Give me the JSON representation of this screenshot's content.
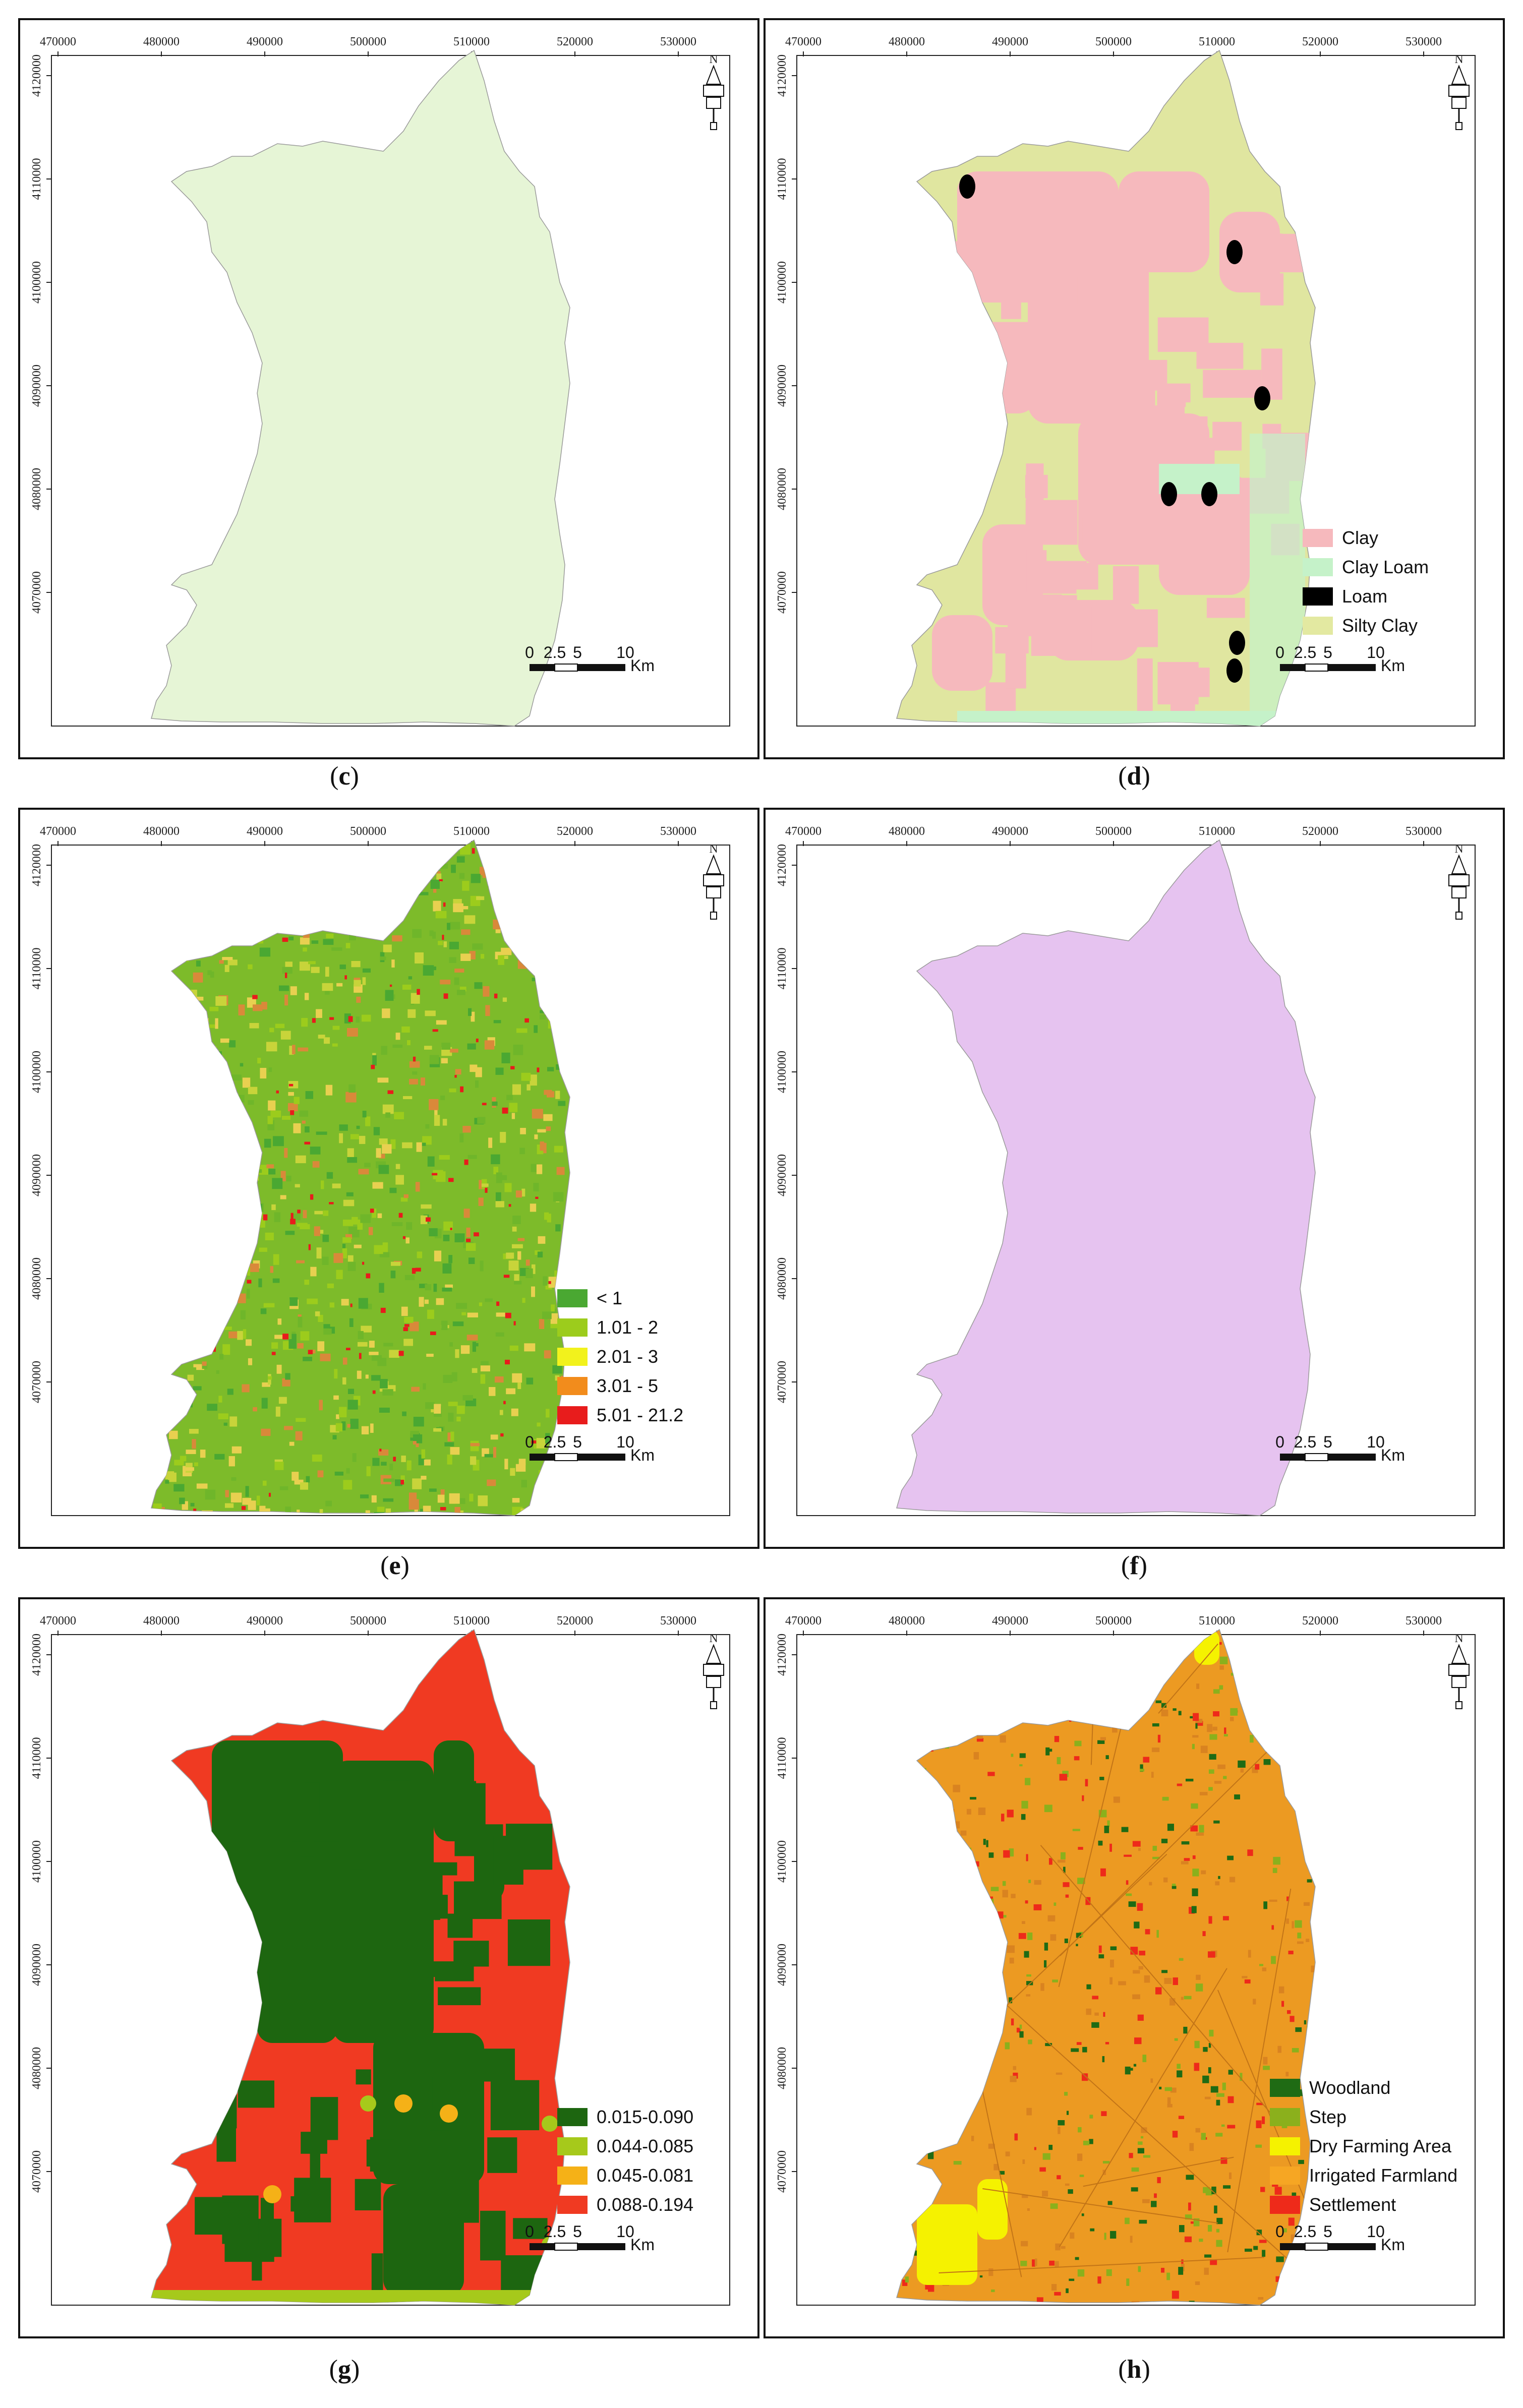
{
  "axes": {
    "x_ticks": [
      "470000",
      "480000",
      "490000",
      "500000",
      "510000",
      "520000",
      "530000"
    ],
    "y_ticks": [
      "4120000",
      "4110000",
      "4100000",
      "4090000",
      "4080000",
      "4070000"
    ]
  },
  "north_label": "N",
  "scale": {
    "labels": [
      "0",
      "2.5",
      "5",
      "10"
    ],
    "unit": "Km"
  },
  "panels": [
    {
      "id": "c",
      "caption": "c",
      "fill": "#e6f5d6",
      "legend": []
    },
    {
      "id": "d",
      "caption": "d",
      "fill": "#e0e6a0",
      "legend": [
        {
          "label": "Clay",
          "color": "#f6b9bd"
        },
        {
          "label": "Clay Loam",
          "color": "#c5f2c9"
        },
        {
          "label": "Loam",
          "color": "#000000"
        },
        {
          "label": "Silty Clay",
          "color": "#e3e9a1"
        }
      ]
    },
    {
      "id": "e",
      "caption": "e",
      "fill": "#7dbb2a",
      "legend": [
        {
          "label": "<  1",
          "color": "#4aa832"
        },
        {
          "label": "1.01 - 2",
          "color": "#9ccc1c"
        },
        {
          "label": "2.01 - 3",
          "color": "#f2f21c"
        },
        {
          "label": "3.01 - 5",
          "color": "#f28c1c"
        },
        {
          "label": "5.01 - 21.2",
          "color": "#e81c1c"
        }
      ]
    },
    {
      "id": "f",
      "caption": "f",
      "fill": "#e6c3f0",
      "legend": []
    },
    {
      "id": "g",
      "caption": "g",
      "fill": "#f03a22",
      "legend": [
        {
          "label": "0.015-0.090",
          "color": "#1d6610"
        },
        {
          "label": "0.044-0.085",
          "color": "#a6c91b"
        },
        {
          "label": "0.045-0.081",
          "color": "#f5b117"
        },
        {
          "label": "0.088-0.194",
          "color": "#f03a22"
        }
      ]
    },
    {
      "id": "h",
      "caption": "h",
      "fill": "#ec9a22",
      "legend": [
        {
          "label": "Woodland",
          "color": "#1f6b14"
        },
        {
          "label": "Step",
          "color": "#8bb01c"
        },
        {
          "label": "Dry Farming Area",
          "color": "#f5f200"
        },
        {
          "label": "Irrigated Farmland",
          "color": "#f6a623"
        },
        {
          "label": "Settlement",
          "color": "#ee2a1a"
        }
      ]
    }
  ]
}
